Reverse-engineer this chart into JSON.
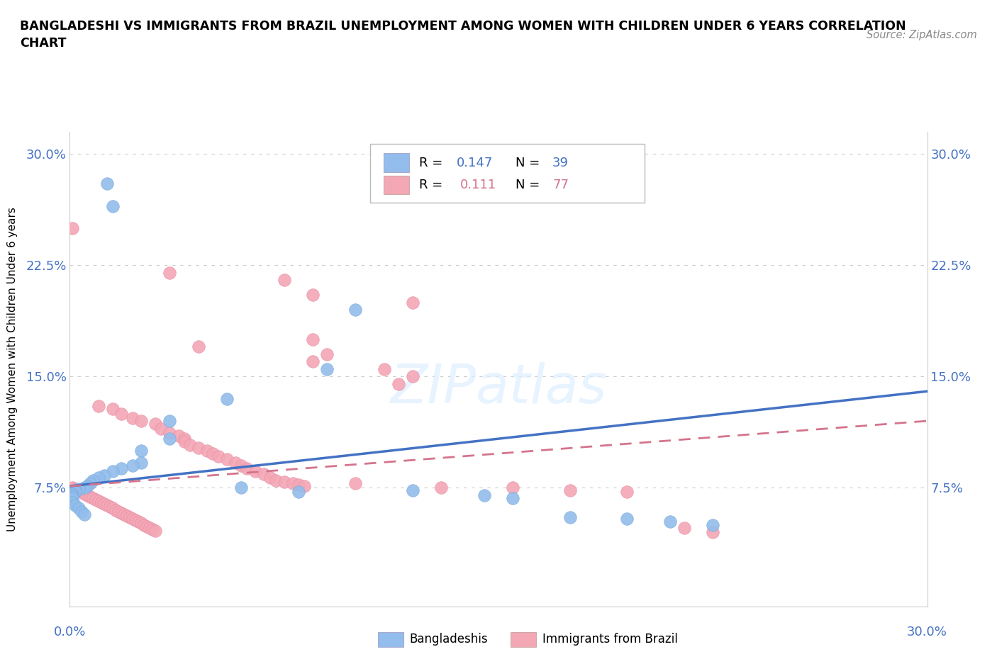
{
  "title": "BANGLADESHI VS IMMIGRANTS FROM BRAZIL UNEMPLOYMENT AMONG WOMEN WITH CHILDREN UNDER 6 YEARS CORRELATION\nCHART",
  "source": "Source: ZipAtlas.com",
  "ylabel": "Unemployment Among Women with Children Under 6 years",
  "y_ticks": [
    0.075,
    0.15,
    0.225,
    0.3
  ],
  "y_tick_labels": [
    "7.5%",
    "15.0%",
    "22.5%",
    "30.0%"
  ],
  "x_range": [
    0.0,
    0.3
  ],
  "y_range": [
    -0.005,
    0.315
  ],
  "blue_line_color": "#4472C4",
  "pink_line_color": "#D4748C",
  "blue_color": "#92BDEC",
  "pink_color": "#F4A7B5",
  "blue_scatter": [
    [
      0.013,
      0.28
    ],
    [
      0.015,
      0.265
    ],
    [
      0.1,
      0.195
    ],
    [
      0.09,
      0.155
    ],
    [
      0.055,
      0.135
    ],
    [
      0.035,
      0.12
    ],
    [
      0.035,
      0.108
    ],
    [
      0.025,
      0.1
    ],
    [
      0.025,
      0.092
    ],
    [
      0.022,
      0.09
    ],
    [
      0.018,
      0.088
    ],
    [
      0.015,
      0.086
    ],
    [
      0.012,
      0.083
    ],
    [
      0.01,
      0.082
    ],
    [
      0.008,
      0.08
    ],
    [
      0.007,
      0.078
    ],
    [
      0.006,
      0.076
    ],
    [
      0.005,
      0.075
    ],
    [
      0.003,
      0.074
    ],
    [
      0.002,
      0.073
    ],
    [
      0.002,
      0.072
    ],
    [
      0.001,
      0.071
    ],
    [
      0.001,
      0.07
    ],
    [
      0.001,
      0.069
    ],
    [
      0.001,
      0.068
    ],
    [
      0.001,
      0.065
    ],
    [
      0.002,
      0.063
    ],
    [
      0.003,
      0.061
    ],
    [
      0.004,
      0.059
    ],
    [
      0.005,
      0.057
    ],
    [
      0.06,
      0.075
    ],
    [
      0.08,
      0.072
    ],
    [
      0.12,
      0.073
    ],
    [
      0.145,
      0.07
    ],
    [
      0.155,
      0.068
    ],
    [
      0.175,
      0.055
    ],
    [
      0.195,
      0.054
    ],
    [
      0.21,
      0.052
    ],
    [
      0.225,
      0.05
    ]
  ],
  "pink_scatter": [
    [
      0.001,
      0.25
    ],
    [
      0.035,
      0.22
    ],
    [
      0.075,
      0.215
    ],
    [
      0.085,
      0.205
    ],
    [
      0.12,
      0.2
    ],
    [
      0.085,
      0.175
    ],
    [
      0.045,
      0.17
    ],
    [
      0.09,
      0.165
    ],
    [
      0.085,
      0.16
    ],
    [
      0.11,
      0.155
    ],
    [
      0.12,
      0.15
    ],
    [
      0.115,
      0.145
    ],
    [
      0.01,
      0.13
    ],
    [
      0.015,
      0.128
    ],
    [
      0.018,
      0.125
    ],
    [
      0.022,
      0.122
    ],
    [
      0.025,
      0.12
    ],
    [
      0.03,
      0.118
    ],
    [
      0.032,
      0.115
    ],
    [
      0.035,
      0.112
    ],
    [
      0.038,
      0.11
    ],
    [
      0.04,
      0.108
    ],
    [
      0.04,
      0.106
    ],
    [
      0.042,
      0.104
    ],
    [
      0.045,
      0.102
    ],
    [
      0.048,
      0.1
    ],
    [
      0.05,
      0.098
    ],
    [
      0.052,
      0.096
    ],
    [
      0.055,
      0.094
    ],
    [
      0.058,
      0.092
    ],
    [
      0.06,
      0.09
    ],
    [
      0.062,
      0.088
    ],
    [
      0.065,
      0.086
    ],
    [
      0.068,
      0.084
    ],
    [
      0.07,
      0.082
    ],
    [
      0.072,
      0.08
    ],
    [
      0.075,
      0.079
    ],
    [
      0.078,
      0.078
    ],
    [
      0.08,
      0.077
    ],
    [
      0.082,
      0.076
    ],
    [
      0.001,
      0.075
    ],
    [
      0.002,
      0.074
    ],
    [
      0.003,
      0.073
    ],
    [
      0.004,
      0.072
    ],
    [
      0.005,
      0.071
    ],
    [
      0.006,
      0.07
    ],
    [
      0.007,
      0.069
    ],
    [
      0.008,
      0.068
    ],
    [
      0.009,
      0.067
    ],
    [
      0.01,
      0.066
    ],
    [
      0.011,
      0.065
    ],
    [
      0.012,
      0.064
    ],
    [
      0.013,
      0.063
    ],
    [
      0.014,
      0.062
    ],
    [
      0.015,
      0.061
    ],
    [
      0.016,
      0.06
    ],
    [
      0.017,
      0.059
    ],
    [
      0.018,
      0.058
    ],
    [
      0.019,
      0.057
    ],
    [
      0.02,
      0.056
    ],
    [
      0.021,
      0.055
    ],
    [
      0.022,
      0.054
    ],
    [
      0.023,
      0.053
    ],
    [
      0.024,
      0.052
    ],
    [
      0.025,
      0.051
    ],
    [
      0.026,
      0.05
    ],
    [
      0.027,
      0.049
    ],
    [
      0.028,
      0.048
    ],
    [
      0.029,
      0.047
    ],
    [
      0.03,
      0.046
    ],
    [
      0.1,
      0.078
    ],
    [
      0.13,
      0.075
    ],
    [
      0.155,
      0.075
    ],
    [
      0.175,
      0.073
    ],
    [
      0.195,
      0.072
    ],
    [
      0.215,
      0.048
    ],
    [
      0.225,
      0.045
    ]
  ]
}
